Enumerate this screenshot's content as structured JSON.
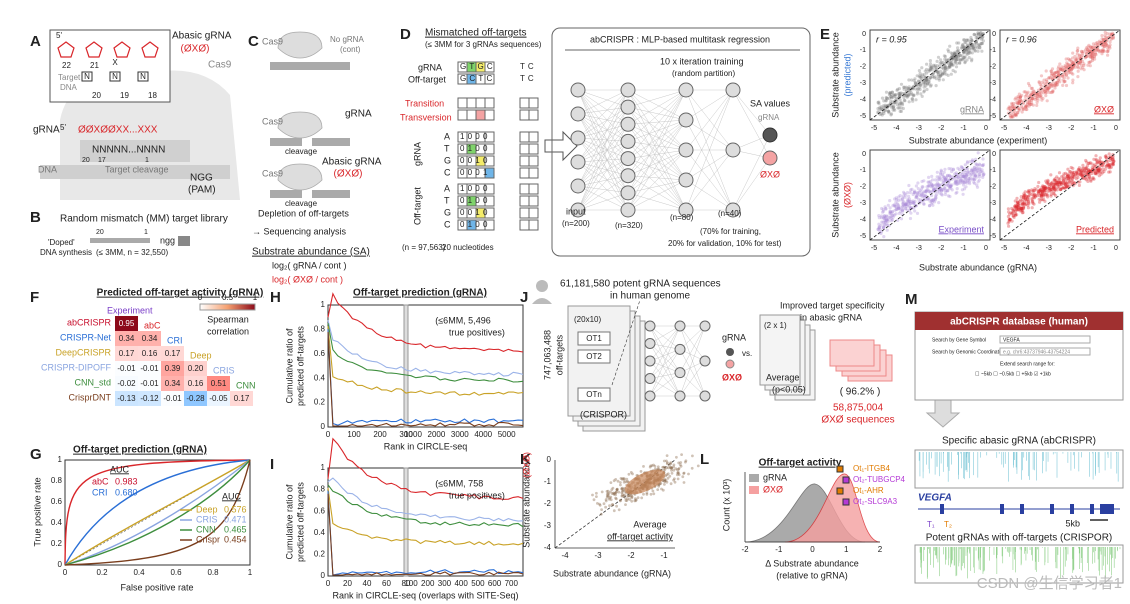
{
  "a": {
    "label": "A",
    "five": "5'",
    "top_nums": [
      "22",
      "21"
    ],
    "x": "X",
    "n": "N",
    "bot_nums": [
      "20",
      "19",
      "18"
    ],
    "title": "Abasic gRNA",
    "symbol": "(ØXØ)",
    "target": "Target",
    "dna": "DNA",
    "cas9": "Cas9",
    "grna": "gRNA",
    "five2": "5'",
    "seq": "ØØXØØXX...XXX",
    "nseq": "NNNNN...NNNN",
    "pos": [
      "20",
      "17",
      "1"
    ],
    "dna2": "DNA",
    "cleavage": "Target cleavage",
    "ngg": "NGG",
    "pam": "(PAM)"
  },
  "b": {
    "label": "B",
    "title": "Random mismatch (MM) target library",
    "doped": "'Doped'",
    "synth": "DNA synthesis",
    "count": "(≤ 3MM, n = 32,550)",
    "n20": "20",
    "n1": "1",
    "ngg": "ngg"
  },
  "c": {
    "label": "C",
    "cas9": "Cas9",
    "nogrna": "No gRNA",
    "cont": "(cont)",
    "grna": "gRNA",
    "cleavage": "cleavage",
    "abasic": "Abasic gRNA",
    "symbol": "(ØXØ)",
    "depletion": "Depletion of off-targets",
    "seq": "→ Sequencing analysis",
    "sa": "Substrate abundance (SA)",
    "f1": "log₂( gRNA / cont )",
    "f2": "log₂( ØXØ / cont )"
  },
  "d": {
    "label": "D",
    "title": "Mismatched off-targets",
    "sub": "(≤ 3MM for 3 gRNAs sequences)",
    "grna": "gRNA",
    "offtarget": "Off-target",
    "seq1": "GTGC",
    "seq2": "GCTC",
    "end1": "TC",
    "end2": "TC",
    "transition": "Transition",
    "transversion": "Transversion",
    "bases": [
      "A",
      "T",
      "G",
      "C"
    ],
    "grna_rows": [
      "1000",
      "0100",
      "0010",
      "0001"
    ],
    "off_rows": [
      "1000",
      "0100",
      "0010",
      "0100"
    ],
    "n": "(n = 97,563)",
    "nt": "20 nucleotides",
    "model": "abCRISPR : MLP-based multitask regression",
    "train": "10 x iteration training",
    "partition": "(random partition)",
    "input": "input",
    "layers": [
      "(n=200)",
      "(n=320)",
      "(n=80)",
      "(n=40)"
    ],
    "sa": "SA values",
    "out1": "gRNA",
    "out2": "ØXØ",
    "split1": "(70% for training,",
    "split2": "20% for validation, 10% for test)"
  },
  "e": {
    "label": "E",
    "r1": "r = 0.95",
    "r2": "r = 0.96",
    "lab1": "gRNA",
    "lab2": "ØXØ",
    "lab3": "Experiment",
    "lab4": "Predicted",
    "ylab_top": "Substrate abundance",
    "ylab_top2": "(predicted)",
    "xlab_top": "Substrate abundance (experiment)",
    "ylab_bot": "Substrate abundance",
    "ylab_bot2": "(ØXØ)",
    "xlab_bot": "Substrate abundance (gRNA)",
    "ticks": [
      "-5",
      "-4",
      "-3",
      "-2",
      "-1",
      "0"
    ]
  },
  "f": {
    "label": "F",
    "title": "Predicted off-target activity (gRNA)",
    "rows": [
      "abCRISPR",
      "CRISPR-Net",
      "DeepCRISPR",
      "CRISPR-DIPOFF",
      "CNN_std",
      "CrisprDNT"
    ],
    "cols": [
      "Experiment",
      "abC",
      "CRI",
      "Deep",
      "CRIS",
      "CNN"
    ],
    "matrix": [
      [
        "0.95"
      ],
      [
        "0.34",
        "0.34"
      ],
      [
        "0.17",
        "0.16",
        "0.17"
      ],
      [
        "-0.01",
        "-0.01",
        "0.39",
        "0.20"
      ],
      [
        "-0.02",
        "-0.01",
        "0.34",
        "0.16",
        "0.51"
      ],
      [
        "-0.13",
        "-0.12",
        "-0.01",
        "-0.28",
        "-0.05",
        "0.17"
      ]
    ],
    "cbar_ticks": [
      "0",
      "0.5",
      "1"
    ],
    "cbar_title1": "Spearman",
    "cbar_title2": "correlation"
  },
  "g": {
    "label": "G",
    "title": "Off-target prediction (gRNA)",
    "ylabel": "True positive rate",
    "xlabel": "False positive rate",
    "auc_top": "AUC",
    "top": [
      {
        "name": "abC",
        "auc": "0.983"
      },
      {
        "name": "CRI",
        "auc": "0.680"
      }
    ],
    "auc_bottom": "AUC",
    "bottom": [
      {
        "name": "Deep",
        "auc": "0.576"
      },
      {
        "name": "CRIS",
        "auc": "0.471"
      },
      {
        "name": "CNN",
        "auc": "0.465"
      },
      {
        "name": "Crispr",
        "auc": "0.454"
      }
    ],
    "ticks": [
      "0",
      "0.2",
      "0.4",
      "0.6",
      "0.8",
      "1"
    ]
  },
  "h": {
    "label": "H",
    "title": "Off-target prediction (gRNA)",
    "ylabel1": "Cumulative ratio of",
    "ylabel2": "predicted off-targets",
    "xlabel": "Rank in CIRCLE-seq",
    "note1": "(≤6MM, 5,496",
    "note2": "true positives)",
    "xticks": [
      "0",
      "100",
      "200",
      "300",
      "1000",
      "2000",
      "3000",
      "4000",
      "5000"
    ],
    "yticks": [
      "0",
      "0.2",
      "0.4",
      "0.6",
      "0.8",
      "1"
    ]
  },
  "i": {
    "label": "I",
    "ylabel1": "Cumulative ratio of",
    "ylabel2": "predicted off-targets",
    "xlabel": "Rank in CIRCLE-seq (overlaps with SITE-Seq)",
    "note1": "(≤6MM, 758",
    "note2": "true positives)",
    "xticks": [
      "0",
      "20",
      "40",
      "60",
      "80",
      "100",
      "200",
      "300",
      "400",
      "500",
      "600",
      "700"
    ],
    "yticks": [
      "0",
      "0.2",
      "0.4",
      "0.6",
      "0.8",
      "1"
    ]
  },
  "j": {
    "label": "J",
    "potent1": "61,181,580 potent gRNA sequences",
    "potent2": "in human genome",
    "offt1": "747,063,488",
    "offt2": "off-targets",
    "crispor": "(CRISPOR)",
    "grid1": "(20x10)",
    "ots": [
      "OT1",
      "OT2",
      "OTn"
    ],
    "grna": "gRNA",
    "vs": "vs.",
    "abasic": "ØXØ",
    "grid2": "(2 x 1)",
    "avg1": "Average",
    "avg2": "(p<0.05)",
    "improved1": "Improved target specificity",
    "improved2": "in abasic gRNA",
    "pct": "( 96.2% )",
    "result1": "58,875,004",
    "result2": "ØXØ sequences"
  },
  "k": {
    "label": "K",
    "ylabel1": "Substrate abundance",
    "ylabel2": "(ØXØ)",
    "xlabel": "Substrate abundance (gRNA)",
    "note1": "Average",
    "note2": "off-target activity",
    "xticks": [
      "-4",
      "-3",
      "-2",
      "-1"
    ],
    "yticks": [
      "-4",
      "-3",
      "-2",
      "-1",
      "0"
    ]
  },
  "l": {
    "label": "L",
    "title": "Off-target activity",
    "leg1": "gRNA",
    "leg2": "ØXØ",
    "ylabel": "Count (x 10³)",
    "xlabel1": "Δ Substrate abundance",
    "xlabel2": "(relative to gRNA)",
    "marks": [
      "Ot₁-ITGB4",
      "Ot₂-TUBGCP4",
      "Ot₁-AHR",
      "Ot₂-SLC9A3"
    ],
    "xticks": [
      "-2",
      "-1",
      "0",
      "1",
      "2"
    ]
  },
  "m": {
    "label": "M",
    "db": "abCRISPR database (human)",
    "s1": "Search by Gene Symbol",
    "s1v": "VEGFA",
    "s2": "Search by Genomic Coordination",
    "s2v": "e.g. chr6:43737946-43754224",
    "ext": "Extend search range for:",
    "opts": "☐ ~5kb  ☐ ~0.5kb  ☐ +5kb  ☑ +1kb",
    "specific": "Specific abasic gRNA (abCRISPR)",
    "gene": "VEGFA",
    "scale": "5kb",
    "potent": "Potent gRNAs with off-targets (CRISPOR)",
    "t1": "T₁",
    "t2": "T₂"
  },
  "watermark": "CSDN @生信学习者1"
}
